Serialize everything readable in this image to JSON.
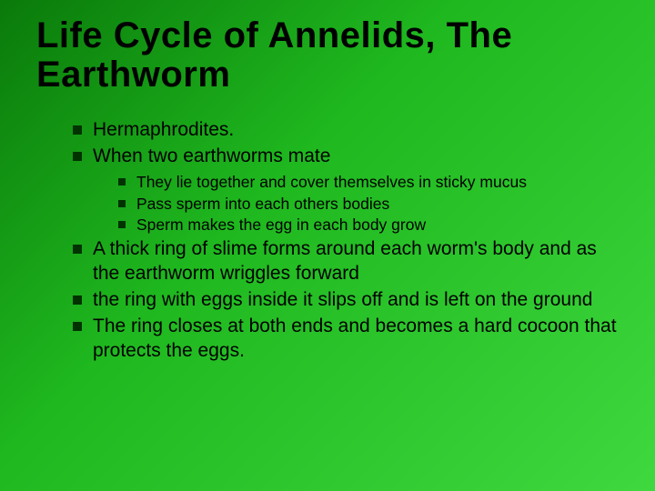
{
  "slide": {
    "title": "Life Cycle of Annelids, The Earthworm",
    "background_gradient": [
      "#0a7a0a",
      "#1fb81f",
      "#3fd83f"
    ],
    "bullet_color": "#003300",
    "text_color": "#000000",
    "title_fontsize": 40,
    "body_fontsize": 21,
    "sub_fontsize": 17.5,
    "bullets": [
      {
        "text": "Hermaphrodites."
      },
      {
        "text": "When two earthworms mate",
        "sub": [
          "They lie together and cover themselves in sticky mucus",
          "Pass sperm into each others bodies",
          "Sperm makes the egg in each body grow"
        ]
      },
      {
        "text": "A thick ring of slime forms around each worm's body and  as the earthworm wriggles forward"
      },
      {
        "text": " the ring with eggs inside it slips off and is left on the ground"
      },
      {
        "text": "The ring closes at both ends and becomes a hard cocoon that protects the eggs."
      }
    ]
  }
}
